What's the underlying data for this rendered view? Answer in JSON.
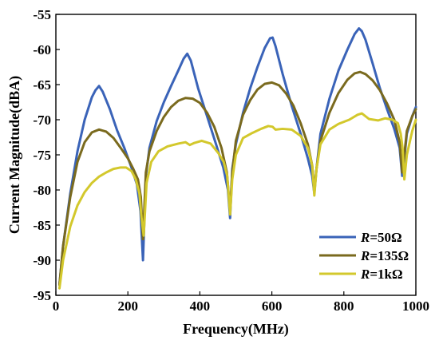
{
  "chart_data": {
    "type": "line",
    "title": "",
    "xlabel": "Frequency(MHz)",
    "ylabel": "Current Magnitude(dBA)",
    "xlim": [
      0,
      1000
    ],
    "ylim": [
      -95,
      -55
    ],
    "xticks": [
      0,
      200,
      400,
      600,
      800,
      1000
    ],
    "yticks": [
      -55,
      -60,
      -65,
      -70,
      -75,
      -80,
      -85,
      -90,
      -95
    ],
    "grid": false,
    "legend_position": "bottom-right",
    "series": [
      {
        "name_prefix": "R",
        "name_suffix": "=50Ω",
        "color": "#3a63b8",
        "x": [
          10,
          20,
          40,
          60,
          80,
          100,
          110,
          120,
          130,
          150,
          170,
          190,
          210,
          225,
          235,
          242,
          250,
          260,
          280,
          300,
          320,
          340,
          355,
          365,
          375,
          395,
          420,
          445,
          465,
          478,
          484,
          490,
          500,
          520,
          540,
          560,
          580,
          595,
          602,
          610,
          630,
          655,
          680,
          700,
          712,
          718,
          724,
          735,
          760,
          785,
          810,
          830,
          842,
          850,
          860,
          880,
          900,
          920,
          940,
          955,
          962,
          968,
          975,
          990,
          1000
        ],
        "y": [
          -93.5,
          -88,
          -80.5,
          -74.5,
          -70,
          -66.8,
          -65.8,
          -65.2,
          -66,
          -68.5,
          -71.5,
          -74,
          -76.8,
          -79.2,
          -83,
          -90,
          -78,
          -74,
          -70.2,
          -67.5,
          -65.2,
          -63,
          -61.3,
          -60.6,
          -61.6,
          -65.5,
          -69.5,
          -73.5,
          -76.8,
          -80,
          -84,
          -77,
          -73.5,
          -69,
          -65.5,
          -62.5,
          -59.8,
          -58.4,
          -58.3,
          -59.5,
          -63.5,
          -68,
          -72,
          -75.5,
          -78,
          -80.5,
          -77,
          -72,
          -67,
          -63,
          -60,
          -57.8,
          -57,
          -57.4,
          -58.6,
          -62,
          -65.5,
          -68.5,
          -71.3,
          -74,
          -78,
          -75.5,
          -72,
          -69.5,
          -68.2
        ]
      },
      {
        "name_prefix": "R",
        "name_suffix": "=135Ω",
        "color": "#7a6a1e",
        "x": [
          10,
          20,
          40,
          60,
          80,
          100,
          120,
          140,
          160,
          180,
          200,
          215,
          228,
          236,
          242,
          250,
          260,
          280,
          300,
          320,
          340,
          360,
          380,
          400,
          420,
          440,
          460,
          475,
          484,
          490,
          500,
          520,
          540,
          560,
          580,
          600,
          620,
          640,
          660,
          680,
          700,
          712,
          718,
          724,
          735,
          760,
          785,
          810,
          830,
          845,
          860,
          880,
          900,
          920,
          940,
          955,
          962,
          968,
          975,
          990,
          1000
        ],
        "y": [
          -93.5,
          -88,
          -81,
          -76,
          -73.2,
          -71.8,
          -71.4,
          -71.7,
          -72.6,
          -74,
          -75.5,
          -77,
          -78.5,
          -81,
          -87,
          -77.5,
          -74.5,
          -71.6,
          -69.6,
          -68.2,
          -67.3,
          -66.9,
          -67,
          -67.6,
          -69,
          -71,
          -74,
          -77.5,
          -83,
          -77.5,
          -73,
          -69.3,
          -67.2,
          -65.7,
          -64.9,
          -64.7,
          -65.1,
          -66.3,
          -68,
          -70.5,
          -73.5,
          -76.5,
          -80,
          -77,
          -73,
          -69,
          -66.2,
          -64.3,
          -63.4,
          -63.2,
          -63.5,
          -64.4,
          -65.8,
          -67.7,
          -70,
          -73.2,
          -77.5,
          -75,
          -71.6,
          -69.5,
          -68.5
        ]
      },
      {
        "name_prefix": "R",
        "name_suffix": "=1kΩ",
        "color": "#d3c82c",
        "x": [
          10,
          20,
          40,
          60,
          80,
          100,
          120,
          140,
          160,
          180,
          195,
          210,
          222,
          232,
          238,
          244,
          252,
          265,
          285,
          310,
          340,
          360,
          372,
          385,
          405,
          430,
          452,
          466,
          476,
          484,
          490,
          500,
          520,
          545,
          570,
          590,
          602,
          610,
          630,
          655,
          680,
          700,
          712,
          718,
          724,
          735,
          760,
          785,
          815,
          838,
          850,
          870,
          895,
          915,
          935,
          950,
          958,
          963,
          968,
          975,
          990,
          1000
        ],
        "y": [
          -94,
          -90,
          -85.2,
          -82.2,
          -80.3,
          -79,
          -78.1,
          -77.5,
          -77,
          -76.8,
          -76.8,
          -77.3,
          -78.5,
          -80.5,
          -84,
          -86.5,
          -79,
          -76,
          -74.5,
          -73.8,
          -73.4,
          -73.2,
          -73.6,
          -73.3,
          -73,
          -73.4,
          -74.8,
          -76,
          -78,
          -83.5,
          -78.5,
          -75,
          -72.6,
          -71.9,
          -71.3,
          -70.9,
          -71,
          -71.4,
          -71.3,
          -71.4,
          -72.3,
          -74,
          -76.5,
          -80.8,
          -77,
          -73.5,
          -71.4,
          -70.6,
          -70,
          -69.3,
          -69.1,
          -69.9,
          -70.1,
          -69.8,
          -70,
          -70.5,
          -72,
          -74,
          -78.5,
          -75,
          -71.6,
          -70
        ]
      }
    ]
  }
}
